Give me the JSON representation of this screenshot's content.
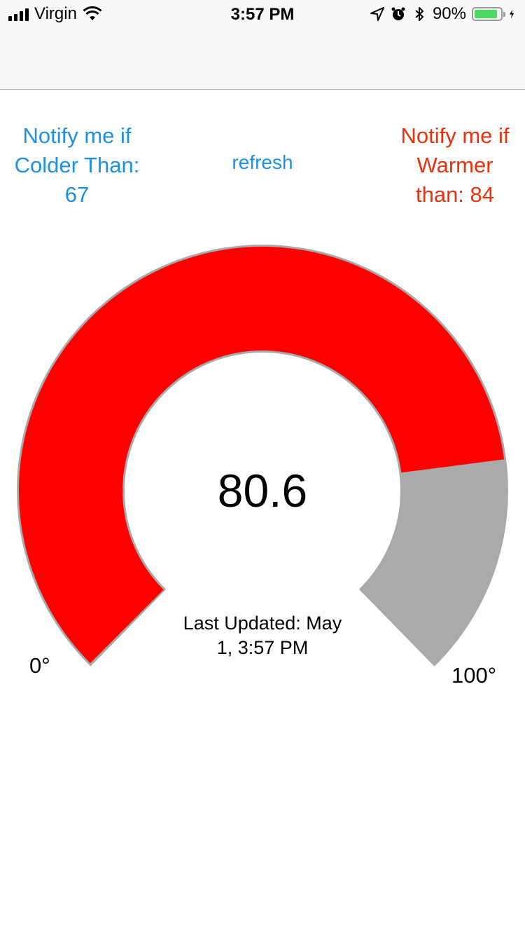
{
  "status_bar": {
    "carrier": "Virgin",
    "time": "3:57 PM",
    "battery_percent": "90%",
    "battery_level": 0.9,
    "icons": [
      "signal-icon",
      "wifi-icon",
      "location-icon",
      "alarm-icon",
      "bluetooth-icon",
      "battery-icon",
      "charging-icon"
    ]
  },
  "thresholds": {
    "cold_line1": "Notify me if",
    "cold_line2": "Colder Than:",
    "cold_value": "67",
    "warm_line1": "Notify me if",
    "warm_line2": "Warmer",
    "warm_line3": "than: 84"
  },
  "refresh_label": "refresh",
  "gauge": {
    "value": 80.6,
    "value_text": "80.6",
    "min": 0,
    "max": 100,
    "min_label": "0°",
    "max_label": "100°",
    "last_updated_line1": "Last Updated: May",
    "last_updated_line2": "1, 3:57 PM",
    "fill_color": "#ff0000",
    "track_color": "#aaaaaa"
  },
  "colors": {
    "cold": "#1e90e0",
    "warm": "#e8320c"
  }
}
